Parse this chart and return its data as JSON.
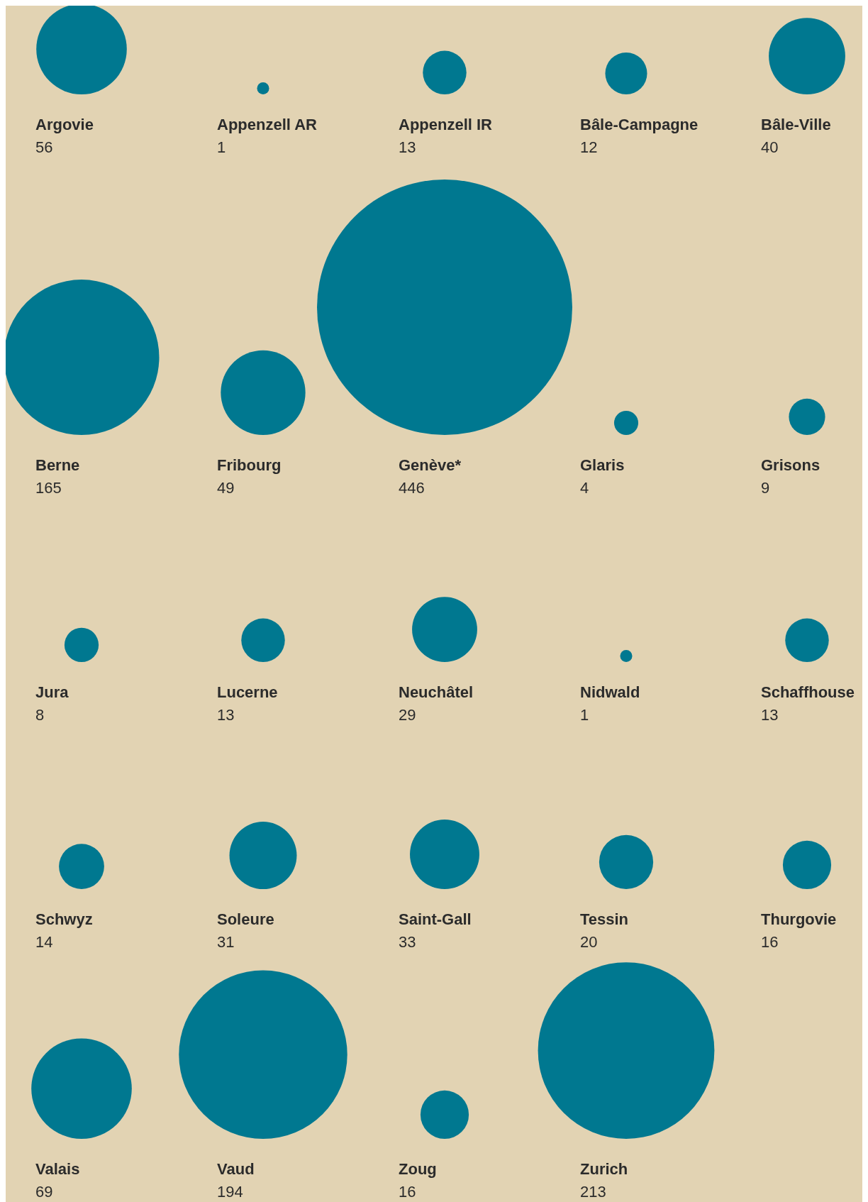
{
  "chart_data": {
    "type": "other",
    "categories": [
      "Argovie",
      "Appenzell AR",
      "Appenzell IR",
      "Bâle-Campagne",
      "Bâle-Ville",
      "Berne",
      "Fribourg",
      "Genève*",
      "Glaris",
      "Grisons",
      "Jura",
      "Lucerne",
      "Neuchâtel",
      "Nidwald",
      "Schaffhouse",
      "Schwyz",
      "Soleure",
      "Saint-Gall",
      "Tessin",
      "Thurgovie",
      "Valais",
      "Vaud",
      "Zoug",
      "Zurich"
    ],
    "values": [
      56,
      1,
      13,
      12,
      40,
      165,
      49,
      446,
      4,
      9,
      8,
      13,
      29,
      1,
      13,
      14,
      31,
      33,
      20,
      16,
      69,
      194,
      16,
      213
    ],
    "color": "#007890",
    "data_labels": true
  }
}
